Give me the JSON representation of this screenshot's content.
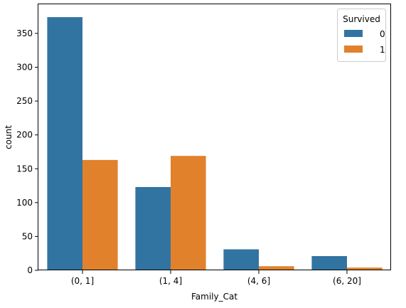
{
  "chart_data": {
    "type": "bar",
    "xlabel": "Family_Cat",
    "ylabel": "count",
    "categories": [
      "(0, 1]",
      "(1, 4]",
      "(4, 6]",
      "(6, 20]"
    ],
    "series": [
      {
        "name": "0",
        "color": "#3274a1",
        "values": [
          374,
          123,
          31,
          21
        ]
      },
      {
        "name": "1",
        "color": "#e1812c",
        "values": [
          163,
          169,
          6,
          4
        ]
      }
    ],
    "ylim": [
      0,
      393
    ],
    "yticks": [
      0,
      50,
      100,
      150,
      200,
      250,
      300,
      350
    ],
    "legend": {
      "title": "Survived",
      "placement": "top-right"
    },
    "grid": false
  }
}
